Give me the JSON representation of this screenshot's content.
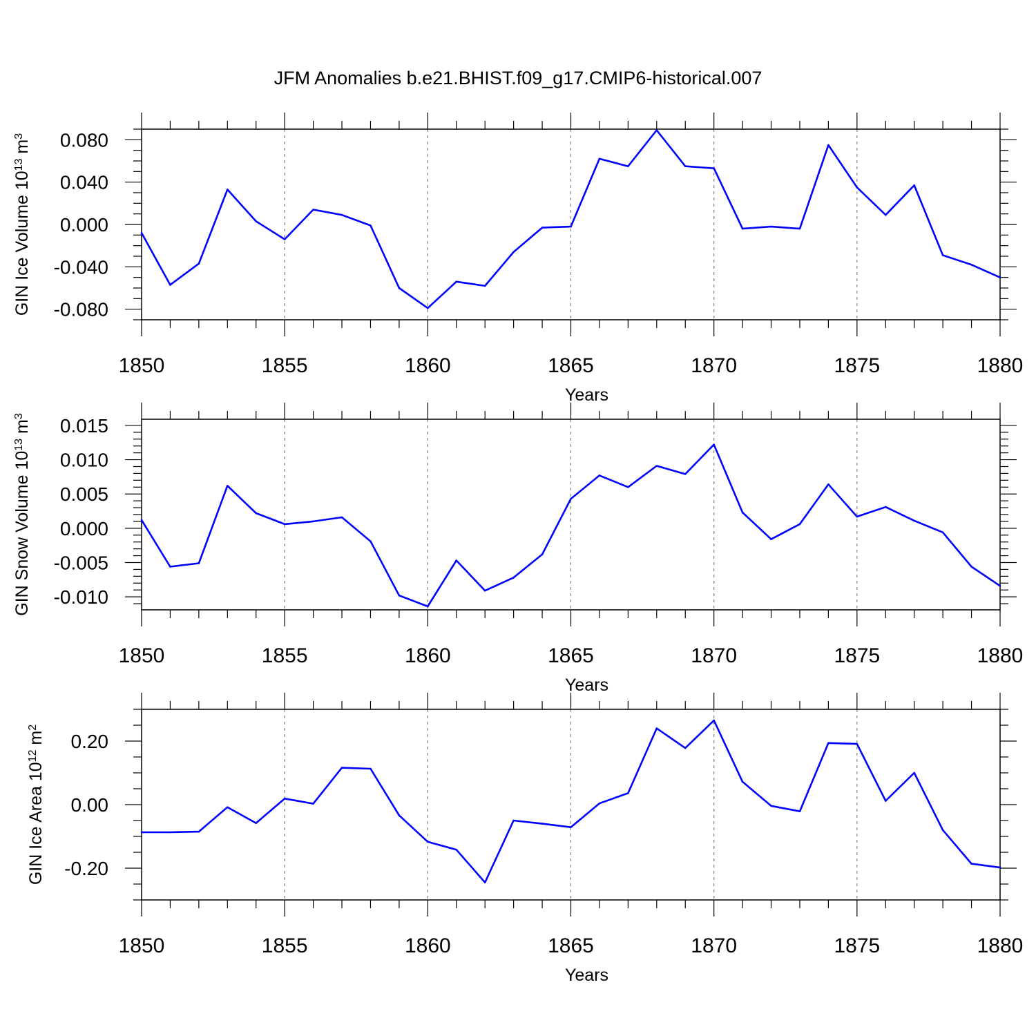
{
  "title": "JFM Anomalies b.e21.BHIST.f09_g17.CMIP6-historical.007",
  "colors": {
    "series": "#0000ff",
    "axis": "#000000",
    "grid": "#7f7f7f"
  },
  "chart_data": [
    {
      "type": "line",
      "name": "GIN Ice Volume",
      "ylabel": {
        "base": "GIN Ice Volume 10",
        "exp1": "13",
        "mid": " m",
        "exp2": "3"
      },
      "xlabel": "Years",
      "xlim": [
        1850,
        1880
      ],
      "ylim": [
        -0.09,
        0.09
      ],
      "xticks": [
        1850,
        1855,
        1860,
        1865,
        1870,
        1875,
        1880
      ],
      "xtick_labels": [
        "1850",
        "1855",
        "1860",
        "1865",
        "1870",
        "1875",
        "1880"
      ],
      "yticks": [
        -0.08,
        -0.04,
        0.0,
        0.04,
        0.08
      ],
      "ytick_labels": [
        "-0.080",
        "-0.040",
        "0.000",
        "0.040",
        "0.080"
      ],
      "yminor_step": 0.01,
      "x": [
        1850,
        1851,
        1852,
        1853,
        1854,
        1855,
        1856,
        1857,
        1858,
        1859,
        1860,
        1861,
        1862,
        1863,
        1864,
        1865,
        1866,
        1867,
        1868,
        1869,
        1870,
        1871,
        1872,
        1873,
        1874,
        1875,
        1876,
        1877,
        1878,
        1879,
        1880
      ],
      "values": [
        -0.008,
        -0.057,
        -0.037,
        0.033,
        0.003,
        -0.014,
        0.014,
        0.009,
        -0.001,
        -0.06,
        -0.079,
        -0.054,
        -0.058,
        -0.026,
        -0.003,
        -0.002,
        0.062,
        0.055,
        0.089,
        0.055,
        0.053,
        -0.004,
        -0.002,
        -0.004,
        0.075,
        0.035,
        0.009,
        0.037,
        -0.029,
        -0.038,
        -0.05
      ]
    },
    {
      "type": "line",
      "name": "GIN Snow Volume",
      "ylabel": {
        "base": "GIN Snow Volume 10",
        "exp1": "13",
        "mid": " m",
        "exp2": "3"
      },
      "xlabel": "Years",
      "xlim": [
        1850,
        1880
      ],
      "ylim": [
        -0.0119,
        0.0159
      ],
      "xticks": [
        1850,
        1855,
        1860,
        1865,
        1870,
        1875,
        1880
      ],
      "xtick_labels": [
        "1850",
        "1855",
        "1860",
        "1865",
        "1870",
        "1875",
        "1880"
      ],
      "yticks": [
        -0.01,
        -0.005,
        0.0,
        0.005,
        0.01,
        0.015
      ],
      "ytick_labels": [
        "-0.010",
        "-0.005",
        "0.000",
        "0.005",
        "0.010",
        "0.015"
      ],
      "yminor_step": 0.001,
      "x": [
        1850,
        1851,
        1852,
        1853,
        1854,
        1855,
        1856,
        1857,
        1858,
        1859,
        1860,
        1861,
        1862,
        1863,
        1864,
        1865,
        1866,
        1867,
        1868,
        1869,
        1870,
        1871,
        1872,
        1873,
        1874,
        1875,
        1876,
        1877,
        1878,
        1879,
        1880
      ],
      "values": [
        0.0012,
        -0.0056,
        -0.0051,
        0.0062,
        0.0022,
        0.0006,
        0.001,
        0.0016,
        -0.0019,
        -0.0098,
        -0.0114,
        -0.0047,
        -0.0091,
        -0.0072,
        -0.0038,
        0.0043,
        0.0077,
        0.006,
        0.0091,
        0.0079,
        0.0122,
        0.0023,
        -0.0016,
        0.0006,
        0.0064,
        0.0017,
        0.0031,
        0.0011,
        -0.0006,
        -0.0056,
        -0.0084
      ]
    },
    {
      "type": "line",
      "name": "GIN Ice Area",
      "ylabel": {
        "base": "GIN Ice Area 10",
        "exp1": "12",
        "mid": " m",
        "exp2": "2"
      },
      "xlabel": "Years",
      "xlim": [
        1850,
        1880
      ],
      "ylim": [
        -0.3,
        0.3
      ],
      "xticks": [
        1850,
        1855,
        1860,
        1865,
        1870,
        1875,
        1880
      ],
      "xtick_labels": [
        "1850",
        "1855",
        "1860",
        "1865",
        "1870",
        "1875",
        "1880"
      ],
      "yticks": [
        -0.2,
        0.0,
        0.2
      ],
      "ytick_labels": [
        "-0.20",
        "0.00",
        "0.20"
      ],
      "yminor_step": 0.05,
      "x": [
        1850,
        1851,
        1852,
        1853,
        1854,
        1855,
        1856,
        1857,
        1858,
        1859,
        1860,
        1861,
        1862,
        1863,
        1864,
        1865,
        1866,
        1867,
        1868,
        1869,
        1870,
        1871,
        1872,
        1873,
        1874,
        1875,
        1876,
        1877,
        1878,
        1879,
        1880
      ],
      "values": [
        -0.087,
        -0.087,
        -0.085,
        -0.008,
        -0.058,
        0.019,
        0.003,
        0.116,
        0.113,
        -0.034,
        -0.117,
        -0.142,
        -0.245,
        -0.05,
        -0.06,
        -0.071,
        0.004,
        0.036,
        0.24,
        0.178,
        0.265,
        0.072,
        -0.004,
        -0.021,
        0.194,
        0.191,
        0.012,
        0.1,
        -0.08,
        -0.186,
        -0.198
      ]
    }
  ]
}
